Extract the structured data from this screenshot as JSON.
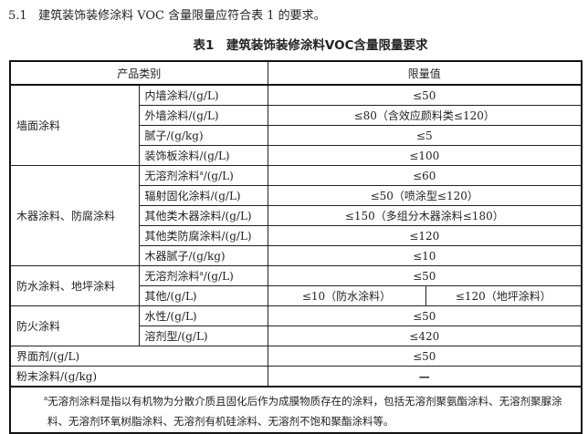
{
  "intro": {
    "number": "5.1",
    "text": "建筑装饰装修涂料 VOC 含量限量应符合表 1 的要求。"
  },
  "table_title": "表1　建筑装饰装修涂料VOC含量限量要求",
  "headers": {
    "category": "产品类别",
    "limit": "限量值"
  },
  "groups": {
    "wall": {
      "label": "墙面涂料",
      "rows": [
        {
          "item": "内墙涂料/(g/L)",
          "limit": "≤50"
        },
        {
          "item": "外墙涂料/(g/L)",
          "limit": "≤80（含效应颜料类≤120）"
        },
        {
          "item": "腻子/(g/kg)",
          "limit": "≤5"
        },
        {
          "item": "装饰板涂料/(g/L)",
          "limit": "≤100"
        }
      ]
    },
    "wood": {
      "label": "木器涂料、防腐涂料",
      "rows": [
        {
          "item": "无溶剂涂料",
          "sup": "a",
          "unit": "/(g/L)",
          "limit": "≤60"
        },
        {
          "item": "辐射固化涂料/(g/L)",
          "limit": "≤50（喷涂型≤120）"
        },
        {
          "item": "其他类木器涂料/(g/L)",
          "limit": "≤150（多组分木器涂料≤180）"
        },
        {
          "item": "其他类防腐涂料/(g/L)",
          "limit": "≤120"
        },
        {
          "item": "木器腻子/(g/kg)",
          "limit": "≤10"
        }
      ]
    },
    "water": {
      "label": "防水涂料、地坪涂料",
      "rows": [
        {
          "item": "无溶剂涂料",
          "sup": "a",
          "unit": "/(g/L)",
          "limit": "≤50"
        },
        {
          "item": "其他/(g/L)",
          "limit_a": "≤10（防水涂料）",
          "limit_b": "≤120（地坪涂料）"
        }
      ]
    },
    "fire": {
      "label": "防火涂料",
      "rows": [
        {
          "item": "水性/(g/L)",
          "limit": "≤50"
        },
        {
          "item": "溶剂型/(g/L)",
          "limit": "≤420"
        }
      ]
    },
    "single": [
      {
        "item": "界面剂/(g/L)",
        "limit": "≤50"
      },
      {
        "item": "粉末涂料/(g/kg)",
        "limit": "—"
      }
    ]
  },
  "footnote": {
    "sup": "a",
    "text": "无溶剂涂料是指以有机物为分散介质且固化后作为成膜物质存在的涂料，包括无溶剂聚氨酯涂料、无溶剂聚脲涂料、无溶剂环氧树脂涂料、无溶剂有机硅涂料、无溶剂不饱和聚酯涂料等。"
  }
}
